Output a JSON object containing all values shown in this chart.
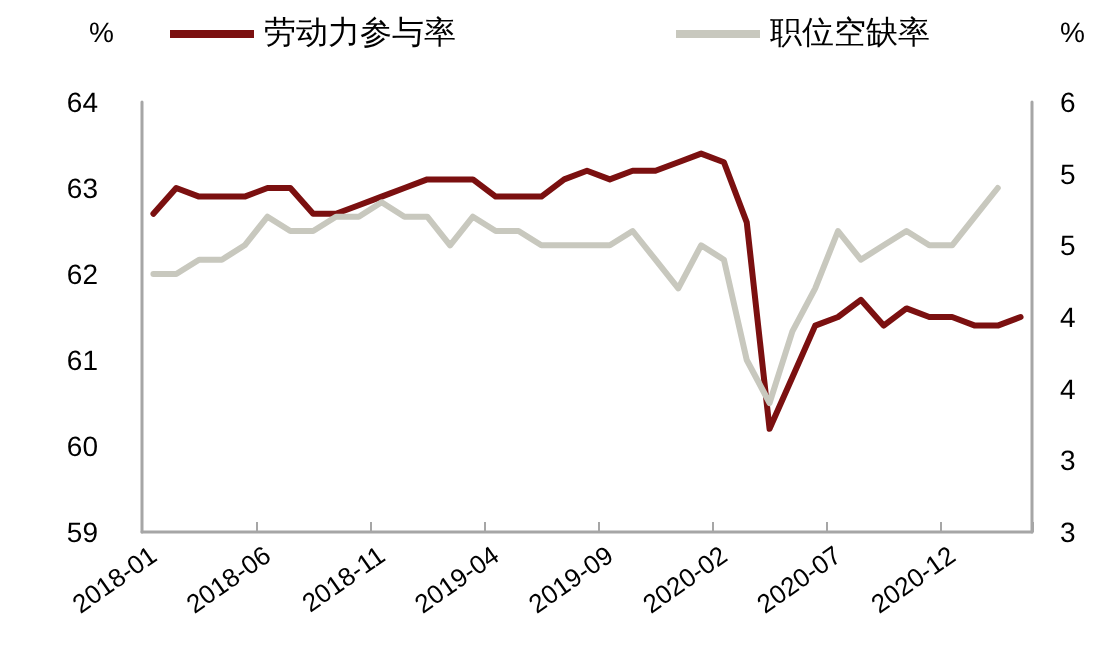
{
  "chart_data": {
    "type": "line",
    "ylabel": "%",
    "y2label": "%",
    "categories": [
      "2018-01",
      null,
      null,
      null,
      null,
      "2018-06",
      null,
      null,
      null,
      null,
      "2018-11",
      null,
      null,
      null,
      null,
      "2019-04",
      null,
      null,
      null,
      null,
      "2019-09",
      null,
      null,
      null,
      null,
      "2020-02",
      null,
      null,
      null,
      null,
      "2020-07",
      null,
      null,
      null,
      null,
      "2020-12",
      null,
      null,
      null
    ],
    "series": [
      {
        "name": "劳动力参与率",
        "color": "#7b1010",
        "values": [
          62.7,
          63.0,
          62.9,
          62.9,
          62.9,
          63.0,
          63.0,
          62.7,
          62.7,
          62.8,
          62.9,
          63.0,
          63.1,
          63.1,
          63.1,
          62.9,
          62.9,
          62.9,
          63.1,
          63.2,
          63.1,
          63.2,
          63.2,
          63.3,
          63.4,
          63.3,
          62.6,
          60.2,
          60.8,
          61.4,
          61.5,
          61.7,
          61.4,
          61.6,
          61.5,
          61.5,
          61.4,
          61.4,
          61.5
        ]
      },
      {
        "name": "职位空缺率",
        "color": "#c8c8be",
        "axis": "y2",
        "values": [
          4.8,
          4.8,
          4.9,
          4.9,
          5.0,
          5.2,
          5.1,
          5.1,
          5.2,
          5.2,
          5.3,
          5.2,
          5.2,
          5.0,
          5.2,
          5.1,
          5.1,
          5.0,
          5.0,
          5.0,
          5.0,
          5.1,
          4.9,
          4.7,
          5.0,
          4.9,
          4.2,
          3.9,
          4.4,
          4.7,
          5.1,
          4.9,
          5.0,
          5.1,
          5.0,
          5.0,
          5.2,
          5.4,
          null
        ]
      }
    ],
    "ylim": [
      59,
      64
    ],
    "yticks": [
      59,
      60,
      61,
      62,
      63,
      64
    ],
    "y2lim": [
      3,
      6
    ],
    "y2ticks": [
      3,
      {
        "value": 3.5,
        "label": "3"
      },
      4,
      {
        "value": 4.5,
        "label": "4"
      },
      5,
      {
        "value": 5.5,
        "label": "5"
      },
      6
    ],
    "grid": false,
    "legend": "top",
    "marker": "none",
    "line_style": "solid"
  }
}
